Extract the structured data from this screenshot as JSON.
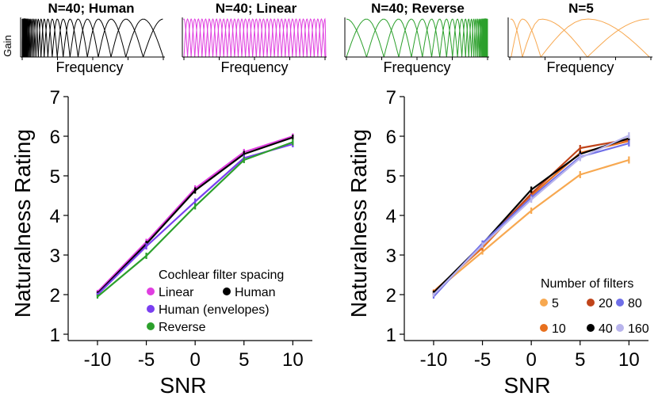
{
  "chart_data": [
    {
      "type": "line",
      "panel": "filter-bank-N40-human",
      "title": "N=40; Human",
      "xlabel": "Frequency",
      "ylabel": "Gain",
      "filters": 40,
      "spacing": "human",
      "color": "#000000"
    },
    {
      "type": "line",
      "panel": "filter-bank-N40-linear",
      "title": "N=40; Linear",
      "xlabel": "Frequency",
      "ylabel": "",
      "filters": 40,
      "spacing": "linear",
      "color": "#e03ee0"
    },
    {
      "type": "line",
      "panel": "filter-bank-N40-reverse",
      "title": "N=40; Reverse",
      "xlabel": "Frequency",
      "ylabel": "",
      "filters": 40,
      "spacing": "reverse",
      "color": "#2ca02c"
    },
    {
      "type": "line",
      "panel": "filter-bank-N5",
      "title": "N=5",
      "xlabel": "Frequency",
      "ylabel": "",
      "filters": 5,
      "spacing": "human",
      "color": "#f7a850"
    },
    {
      "type": "line",
      "panel": "spacing-ratings",
      "xlabel": "SNR",
      "ylabel": "Naturalness Rating",
      "x": [
        -10,
        -5,
        0,
        5,
        10
      ],
      "xticks": [
        "-10",
        "-5",
        "0",
        "5",
        "10"
      ],
      "yticks": [
        "1",
        "2",
        "3",
        "4",
        "5",
        "6",
        "7"
      ],
      "xlim": [
        -13,
        12
      ],
      "ylim": [
        1,
        7
      ],
      "legend_title": "Cochlear filter spacing",
      "legend_position": "bottom-right",
      "series": [
        {
          "name": "Linear",
          "color": "#e03ee0",
          "values": [
            2.07,
            3.33,
            4.68,
            5.6,
            6.0
          ],
          "err": [
            0.05,
            0.08,
            0.08,
            0.08,
            0.07
          ]
        },
        {
          "name": "Human",
          "color": "#000000",
          "values": [
            2.03,
            3.28,
            4.63,
            5.55,
            5.97
          ],
          "err": [
            0.05,
            0.08,
            0.08,
            0.08,
            0.07
          ]
        },
        {
          "name": "Human (envelopes)",
          "color": "#7a3ff0",
          "values": [
            2.0,
            3.22,
            4.35,
            5.45,
            5.8
          ],
          "err": [
            0.05,
            0.08,
            0.08,
            0.08,
            0.08
          ]
        },
        {
          "name": "Reverse",
          "color": "#2ca02c",
          "values": [
            1.95,
            2.98,
            4.23,
            5.4,
            5.85
          ],
          "err": [
            0.05,
            0.08,
            0.08,
            0.08,
            0.08
          ]
        }
      ]
    },
    {
      "type": "line",
      "panel": "filter-count-ratings",
      "xlabel": "SNR",
      "ylabel": "Naturalness Rating",
      "x": [
        -10,
        -5,
        0,
        5,
        10
      ],
      "xticks": [
        "-10",
        "-5",
        "0",
        "5",
        "10"
      ],
      "yticks": [
        "1",
        "2",
        "3",
        "4",
        "5",
        "6",
        "7"
      ],
      "xlim": [
        -13,
        12
      ],
      "ylim": [
        1,
        7
      ],
      "legend_title": "Number of filters",
      "legend_position": "bottom-right",
      "series": [
        {
          "name": "5",
          "color": "#f7a850",
          "values": [
            2.05,
            3.08,
            4.12,
            5.03,
            5.4
          ],
          "err": [
            0.05,
            0.07,
            0.08,
            0.09,
            0.09
          ]
        },
        {
          "name": "10",
          "color": "#e8701e",
          "values": [
            2.08,
            3.18,
            4.5,
            5.58,
            5.88
          ],
          "err": [
            0.05,
            0.07,
            0.08,
            0.08,
            0.08
          ]
        },
        {
          "name": "20",
          "color": "#c0441a",
          "values": [
            2.0,
            3.25,
            4.55,
            5.7,
            5.92
          ],
          "err": [
            0.05,
            0.07,
            0.08,
            0.08,
            0.08
          ]
        },
        {
          "name": "40",
          "color": "#000000",
          "values": [
            2.05,
            3.28,
            4.65,
            5.55,
            5.95
          ],
          "err": [
            0.05,
            0.07,
            0.08,
            0.08,
            0.08
          ]
        },
        {
          "name": "80",
          "color": "#6f6fe8",
          "values": [
            1.95,
            3.3,
            4.45,
            5.48,
            5.82
          ],
          "err": [
            0.05,
            0.07,
            0.08,
            0.08,
            0.08
          ]
        },
        {
          "name": "160",
          "color": "#b8b4ec",
          "values": [
            2.0,
            3.25,
            4.4,
            5.45,
            6.02
          ],
          "err": [
            0.05,
            0.07,
            0.08,
            0.08,
            0.08
          ]
        }
      ]
    }
  ]
}
